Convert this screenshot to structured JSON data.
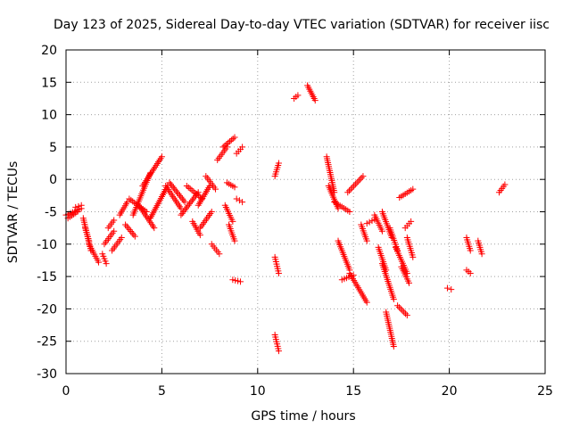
{
  "chart_data": {
    "type": "scatter",
    "title": "Day 123 of 2025, Sidereal Day-to-day VTEC variation (SDTVAR) for receiver iisc",
    "xlabel": "GPS time / hours",
    "ylabel": "SDTVAR / TECUs",
    "xlim": [
      0,
      25
    ],
    "ylim": [
      -30,
      20
    ],
    "xticks": [
      0,
      5,
      10,
      15,
      20,
      25
    ],
    "yticks": [
      -30,
      -25,
      -20,
      -15,
      -10,
      -5,
      0,
      5,
      10,
      15,
      20
    ],
    "grid": true,
    "marker": "+",
    "color": "#ff0000",
    "series": [
      {
        "name": "SDTVAR",
        "segments": [
          {
            "x": [
              0.0,
              0.8
            ],
            "y": [
              -5.5,
              -4.5
            ]
          },
          {
            "x": [
              0.1,
              0.6
            ],
            "y": [
              -6.0,
              -5.0
            ]
          },
          {
            "x": [
              0.5,
              0.8
            ],
            "y": [
              -4.3,
              -4.0
            ]
          },
          {
            "x": [
              0.9,
              1.3
            ],
            "y": [
              -6.0,
              -11.0
            ]
          },
          {
            "x": [
              1.2,
              1.7
            ],
            "y": [
              -10.0,
              -12.8
            ]
          },
          {
            "x": [
              1.0,
              1.2
            ],
            "y": [
              -7.5,
              -9.5
            ]
          },
          {
            "x": [
              2.0,
              2.5
            ],
            "y": [
              -10.0,
              -8.0
            ]
          },
          {
            "x": [
              2.2,
              2.5
            ],
            "y": [
              -7.5,
              -6.3
            ]
          },
          {
            "x": [
              1.9,
              2.1
            ],
            "y": [
              -11.5,
              -13.0
            ]
          },
          {
            "x": [
              2.4,
              2.9
            ],
            "y": [
              -11.0,
              -9.0
            ]
          },
          {
            "x": [
              2.8,
              3.2
            ],
            "y": [
              -5.5,
              -3.5
            ]
          },
          {
            "x": [
              3.1,
              3.6
            ],
            "y": [
              -7.0,
              -8.8
            ]
          },
          {
            "x": [
              3.5,
              4.4
            ],
            "y": [
              -5.5,
              1.0
            ]
          },
          {
            "x": [
              4.0,
              5.0
            ],
            "y": [
              -1.0,
              3.5
            ]
          },
          {
            "x": [
              3.3,
              4.2
            ],
            "y": [
              -3.0,
              -5.0
            ]
          },
          {
            "x": [
              3.8,
              4.6
            ],
            "y": [
              -4.0,
              -7.5
            ]
          },
          {
            "x": [
              4.4,
              5.3
            ],
            "y": [
              -6.0,
              -1.0
            ]
          },
          {
            "x": [
              5.2,
              6.0
            ],
            "y": [
              -1.0,
              -4.5
            ]
          },
          {
            "x": [
              5.4,
              6.2
            ],
            "y": [
              -0.5,
              -3.5
            ]
          },
          {
            "x": [
              6.0,
              6.9
            ],
            "y": [
              -5.5,
              -2.0
            ]
          },
          {
            "x": [
              6.3,
              7.1
            ],
            "y": [
              -1.0,
              -3.0
            ]
          },
          {
            "x": [
              6.6,
              7.0
            ],
            "y": [
              -6.5,
              -8.6
            ]
          },
          {
            "x": [
              6.9,
              7.5
            ],
            "y": [
              -4.0,
              -1.0
            ]
          },
          {
            "x": [
              7.3,
              7.8
            ],
            "y": [
              0.5,
              -1.5
            ]
          },
          {
            "x": [
              7.0,
              7.6
            ],
            "y": [
              -7.5,
              -5.0
            ]
          },
          {
            "x": [
              7.6,
              8.0
            ],
            "y": [
              -10.0,
              -11.5
            ]
          },
          {
            "x": [
              7.9,
              8.4
            ],
            "y": [
              3.0,
              5.0
            ]
          },
          {
            "x": [
              8.2,
              8.8
            ],
            "y": [
              5.0,
              6.5
            ]
          },
          {
            "x": [
              8.3,
              8.7
            ],
            "y": [
              -4.0,
              -6.5
            ]
          },
          {
            "x": [
              8.5,
              8.8
            ],
            "y": [
              -7.0,
              -9.5
            ]
          },
          {
            "x": [
              8.4,
              8.8
            ],
            "y": [
              -0.5,
              -1.2
            ]
          },
          {
            "x": [
              8.9,
              9.2
            ],
            "y": [
              4.0,
              5.0
            ]
          },
          {
            "x": [
              8.9,
              9.2
            ],
            "y": [
              -3.0,
              -3.5
            ]
          },
          {
            "x": [
              8.7,
              9.1
            ],
            "y": [
              -15.5,
              -15.8
            ]
          },
          {
            "x": [
              10.9,
              11.1
            ],
            "y": [
              -12.0,
              -14.5
            ]
          },
          {
            "x": [
              10.9,
              11.1
            ],
            "y": [
              -24.0,
              -26.5
            ]
          },
          {
            "x": [
              10.9,
              11.1
            ],
            "y": [
              0.5,
              2.5
            ]
          },
          {
            "x": [
              11.9,
              12.1
            ],
            "y": [
              12.5,
              13.0
            ]
          },
          {
            "x": [
              12.6,
              13.0
            ],
            "y": [
              14.5,
              12.2
            ]
          },
          {
            "x": [
              13.6,
              14.0
            ],
            "y": [
              3.5,
              -2.0
            ]
          },
          {
            "x": [
              13.7,
              14.2
            ],
            "y": [
              -1.0,
              -4.5
            ]
          },
          {
            "x": [
              14.0,
              14.8
            ],
            "y": [
              -3.5,
              -5.0
            ]
          },
          {
            "x": [
              14.2,
              14.8
            ],
            "y": [
              -9.5,
              -14.0
            ]
          },
          {
            "x": [
              14.4,
              15.0
            ],
            "y": [
              -15.5,
              -14.8
            ]
          },
          {
            "x": [
              14.7,
              15.5
            ],
            "y": [
              -2.0,
              0.5
            ]
          },
          {
            "x": [
              14.8,
              15.7
            ],
            "y": [
              -14.5,
              -19.0
            ]
          },
          {
            "x": [
              15.4,
              15.7
            ],
            "y": [
              -7.0,
              -9.5
            ]
          },
          {
            "x": [
              15.7,
              16.1
            ],
            "y": [
              -6.8,
              -6.2
            ]
          },
          {
            "x": [
              16.1,
              16.5
            ],
            "y": [
              -5.5,
              -8.0
            ]
          },
          {
            "x": [
              16.3,
              16.7
            ],
            "y": [
              -10.5,
              -14.0
            ]
          },
          {
            "x": [
              16.5,
              17.1
            ],
            "y": [
              -13.0,
              -18.5
            ]
          },
          {
            "x": [
              16.7,
              17.1
            ],
            "y": [
              -20.5,
              -25.8
            ]
          },
          {
            "x": [
              16.5,
              17.0
            ],
            "y": [
              -5.0,
              -9.0
            ]
          },
          {
            "x": [
              16.9,
              17.3
            ],
            "y": [
              -7.5,
              -11.0
            ]
          },
          {
            "x": [
              17.2,
              17.8
            ],
            "y": [
              -10.5,
              -14.5
            ]
          },
          {
            "x": [
              17.5,
              17.9
            ],
            "y": [
              -13.5,
              -16.0
            ]
          },
          {
            "x": [
              17.3,
              17.8
            ],
            "y": [
              -19.5,
              -21.0
            ]
          },
          {
            "x": [
              17.7,
              18.0
            ],
            "y": [
              -7.5,
              -6.5
            ]
          },
          {
            "x": [
              17.4,
              18.1
            ],
            "y": [
              -2.8,
              -1.5
            ]
          },
          {
            "x": [
              17.8,
              18.1
            ],
            "y": [
              -9.0,
              -12.0
            ]
          },
          {
            "x": [
              19.9,
              20.1
            ],
            "y": [
              -16.8,
              -17.0
            ]
          },
          {
            "x": [
              20.9,
              21.1
            ],
            "y": [
              -14.0,
              -14.5
            ]
          },
          {
            "x": [
              20.9,
              21.1
            ],
            "y": [
              -9.0,
              -11.0
            ]
          },
          {
            "x": [
              21.5,
              21.7
            ],
            "y": [
              -9.5,
              -11.5
            ]
          },
          {
            "x": [
              22.6,
              22.9
            ],
            "y": [
              -2.0,
              -0.8
            ]
          }
        ]
      }
    ]
  }
}
